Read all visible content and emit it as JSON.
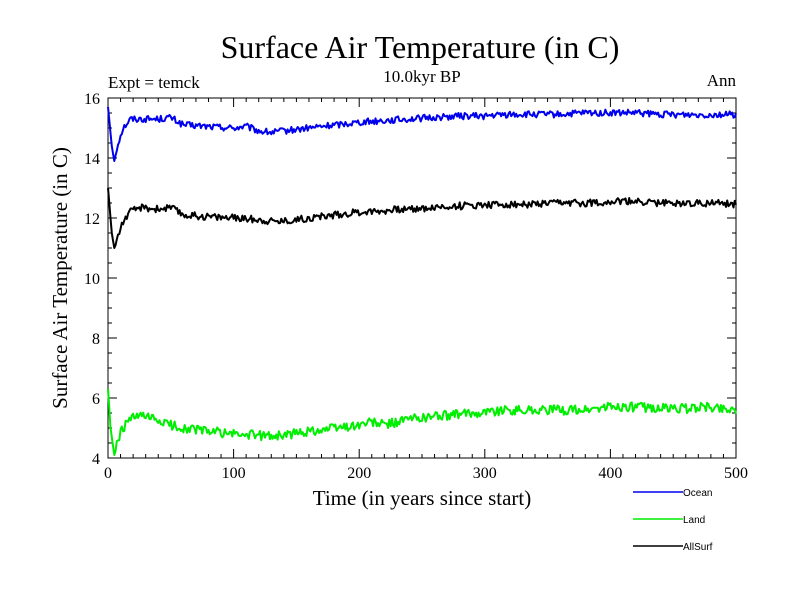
{
  "chart_data": {
    "type": "line",
    "title": "Surface Air Temperature (in C)",
    "subtitle": "10.0kyr BP",
    "left_label": "Expt = temck",
    "right_label": "Ann",
    "xlabel": "Time (in years since start)",
    "ylabel": "Surface Air Temperature (in C)",
    "xlim": [
      0,
      500
    ],
    "ylim": [
      4,
      16
    ],
    "x_ticks": [
      0,
      100,
      200,
      300,
      400,
      500
    ],
    "y_ticks": [
      4,
      6,
      8,
      10,
      12,
      14,
      16
    ],
    "grid": false,
    "legend_position": "bottom-right",
    "series": [
      {
        "name": "Ocean",
        "color": "#0000ee",
        "points": [
          [
            0,
            15.7
          ],
          [
            3,
            14.4
          ],
          [
            5,
            13.9
          ],
          [
            8,
            14.5
          ],
          [
            12,
            15.0
          ],
          [
            18,
            15.3
          ],
          [
            25,
            15.3
          ],
          [
            40,
            15.3
          ],
          [
            50,
            15.35
          ],
          [
            60,
            15.1
          ],
          [
            80,
            15.05
          ],
          [
            100,
            15.0
          ],
          [
            110,
            15.05
          ],
          [
            120,
            14.9
          ],
          [
            130,
            14.85
          ],
          [
            140,
            14.9
          ],
          [
            160,
            15.0
          ],
          [
            180,
            15.1
          ],
          [
            200,
            15.2
          ],
          [
            220,
            15.25
          ],
          [
            240,
            15.3
          ],
          [
            260,
            15.35
          ],
          [
            280,
            15.4
          ],
          [
            300,
            15.4
          ],
          [
            320,
            15.45
          ],
          [
            340,
            15.45
          ],
          [
            360,
            15.45
          ],
          [
            380,
            15.5
          ],
          [
            400,
            15.5
          ],
          [
            420,
            15.5
          ],
          [
            440,
            15.45
          ],
          [
            460,
            15.45
          ],
          [
            480,
            15.45
          ],
          [
            500,
            15.45
          ]
        ]
      },
      {
        "name": "Land",
        "color": "#00ee00",
        "points": [
          [
            0,
            6.3
          ],
          [
            2,
            5.0
          ],
          [
            5,
            4.1
          ],
          [
            8,
            4.6
          ],
          [
            12,
            5.0
          ],
          [
            18,
            5.3
          ],
          [
            25,
            5.4
          ],
          [
            35,
            5.3
          ],
          [
            50,
            5.1
          ],
          [
            60,
            5.0
          ],
          [
            80,
            4.9
          ],
          [
            100,
            4.8
          ],
          [
            120,
            4.75
          ],
          [
            140,
            4.75
          ],
          [
            160,
            4.9
          ],
          [
            180,
            5.0
          ],
          [
            200,
            5.1
          ],
          [
            210,
            5.2
          ],
          [
            220,
            5.1
          ],
          [
            240,
            5.3
          ],
          [
            260,
            5.4
          ],
          [
            280,
            5.45
          ],
          [
            300,
            5.55
          ],
          [
            320,
            5.6
          ],
          [
            340,
            5.6
          ],
          [
            360,
            5.6
          ],
          [
            380,
            5.6
          ],
          [
            400,
            5.7
          ],
          [
            420,
            5.7
          ],
          [
            440,
            5.65
          ],
          [
            460,
            5.65
          ],
          [
            480,
            5.7
          ],
          [
            500,
            5.6
          ]
        ]
      },
      {
        "name": "AllSurf",
        "color": "#000000",
        "points": [
          [
            0,
            13.0
          ],
          [
            3,
            11.5
          ],
          [
            5,
            11.0
          ],
          [
            8,
            11.4
          ],
          [
            12,
            11.9
          ],
          [
            18,
            12.2
          ],
          [
            25,
            12.35
          ],
          [
            40,
            12.3
          ],
          [
            50,
            12.35
          ],
          [
            60,
            12.1
          ],
          [
            80,
            12.05
          ],
          [
            100,
            12.0
          ],
          [
            120,
            11.95
          ],
          [
            130,
            11.9
          ],
          [
            140,
            11.9
          ],
          [
            160,
            12.0
          ],
          [
            180,
            12.1
          ],
          [
            200,
            12.2
          ],
          [
            220,
            12.25
          ],
          [
            240,
            12.3
          ],
          [
            260,
            12.35
          ],
          [
            280,
            12.4
          ],
          [
            300,
            12.45
          ],
          [
            320,
            12.45
          ],
          [
            340,
            12.45
          ],
          [
            360,
            12.5
          ],
          [
            380,
            12.5
          ],
          [
            400,
            12.55
          ],
          [
            420,
            12.55
          ],
          [
            440,
            12.5
          ],
          [
            460,
            12.5
          ],
          [
            480,
            12.5
          ],
          [
            500,
            12.45
          ]
        ]
      }
    ]
  }
}
